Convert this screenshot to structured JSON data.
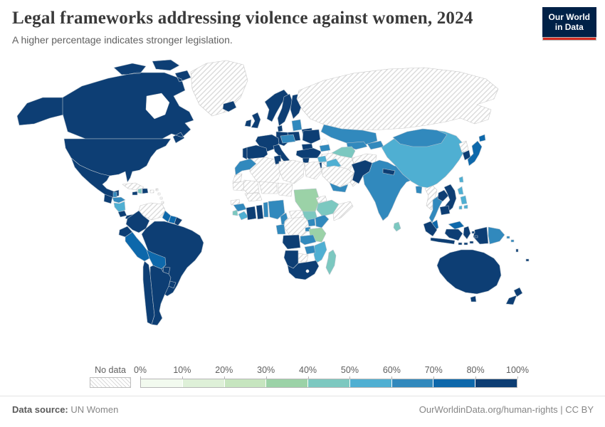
{
  "header": {
    "title": "Legal frameworks addressing violence against women, 2024",
    "subtitle": "A higher percentage indicates stronger legislation.",
    "logo": {
      "line1": "Our World",
      "line2": "in Data",
      "bg_color": "#002147",
      "accent_color": "#d42b21"
    }
  },
  "chart_data": {
    "type": "choropleth_map",
    "title": "Legal frameworks addressing violence against women, 2024",
    "unit": "%",
    "legend": {
      "no_data_label": "No data",
      "tick_labels": [
        "0%",
        "10%",
        "20%",
        "30%",
        "40%",
        "50%",
        "60%",
        "70%",
        "80%",
        "100%"
      ],
      "bins": [
        {
          "range": "0-10%",
          "color": "#f2faef"
        },
        {
          "range": "10-20%",
          "color": "#def0d8"
        },
        {
          "range": "20-30%",
          "color": "#c6e5bf"
        },
        {
          "range": "30-40%",
          "color": "#9bd2a7"
        },
        {
          "range": "40-50%",
          "color": "#7cc8c0"
        },
        {
          "range": "50-60%",
          "color": "#4fafd2"
        },
        {
          "range": "60-70%",
          "color": "#3189bd"
        },
        {
          "range": "70-80%",
          "color": "#0d68ab"
        },
        {
          "range": "80-100%",
          "color": "#0d3e74"
        }
      ],
      "no_data_pattern": "diagonal-hatch"
    },
    "regions": [
      {
        "id": "united-states",
        "name": "United States",
        "bin": "80-100%"
      },
      {
        "id": "canada",
        "name": "Canada",
        "bin": "80-100%"
      },
      {
        "id": "greenland",
        "name": "Greenland",
        "bin": "No data"
      },
      {
        "id": "mexico",
        "name": "Mexico",
        "bin": "80-100%"
      },
      {
        "id": "guatemala",
        "name": "Guatemala",
        "bin": "80-100%"
      },
      {
        "id": "belize",
        "name": "Belize",
        "bin": "60-70%"
      },
      {
        "id": "honduras",
        "name": "Honduras",
        "bin": "60-70%"
      },
      {
        "id": "nicaragua",
        "name": "Nicaragua",
        "bin": "50-60%"
      },
      {
        "id": "costa-rica",
        "name": "Costa Rica",
        "bin": "80-100%"
      },
      {
        "id": "panama",
        "name": "Panama",
        "bin": "80-100%"
      },
      {
        "id": "cuba",
        "name": "Cuba",
        "bin": "No data"
      },
      {
        "id": "jamaica",
        "name": "Jamaica",
        "bin": "80-100%"
      },
      {
        "id": "haiti",
        "name": "Haiti",
        "bin": "40-50%"
      },
      {
        "id": "dominican-republic",
        "name": "Dominican Republic",
        "bin": "80-100%"
      },
      {
        "id": "puerto-rico",
        "name": "Puerto Rico",
        "bin": "No data"
      },
      {
        "id": "caribbean-islands",
        "name": "Lesser Antilles",
        "bin": "No data"
      },
      {
        "id": "trinidad-and-tobago",
        "name": "Trinidad and Tobago",
        "bin": "70-80%"
      },
      {
        "id": "venezuela",
        "name": "Venezuela",
        "bin": "No data"
      },
      {
        "id": "colombia",
        "name": "Colombia",
        "bin": "80-100%"
      },
      {
        "id": "guyana",
        "name": "Guyana",
        "bin": "70-80%"
      },
      {
        "id": "suriname",
        "name": "Suriname",
        "bin": "70-80%"
      },
      {
        "id": "french-guiana",
        "name": "French Guiana (France)",
        "bin": "80-100%"
      },
      {
        "id": "ecuador",
        "name": "Ecuador",
        "bin": "80-100%"
      },
      {
        "id": "brazil",
        "name": "Brazil",
        "bin": "80-100%"
      },
      {
        "id": "peru",
        "name": "Peru",
        "bin": "70-80%"
      },
      {
        "id": "bolivia",
        "name": "Bolivia",
        "bin": "70-80%"
      },
      {
        "id": "paraguay",
        "name": "Paraguay",
        "bin": "80-100%"
      },
      {
        "id": "uruguay",
        "name": "Uruguay",
        "bin": "80-100%"
      },
      {
        "id": "chile",
        "name": "Chile",
        "bin": "80-100%"
      },
      {
        "id": "argentina",
        "name": "Argentina",
        "bin": "80-100%"
      },
      {
        "id": "iceland",
        "name": "Iceland",
        "bin": "80-100%"
      },
      {
        "id": "united-kingdom",
        "name": "United Kingdom",
        "bin": "80-100%"
      },
      {
        "id": "ireland",
        "name": "Ireland",
        "bin": "80-100%"
      },
      {
        "id": "norway",
        "name": "Norway",
        "bin": "80-100%"
      },
      {
        "id": "sweden",
        "name": "Sweden",
        "bin": "80-100%"
      },
      {
        "id": "finland",
        "name": "Finland",
        "bin": "80-100%"
      },
      {
        "id": "denmark",
        "name": "Denmark",
        "bin": "80-100%"
      },
      {
        "id": "baltics",
        "name": "Latvia & Lithuania",
        "bin": "60-70%"
      },
      {
        "id": "belarus",
        "name": "Belarus",
        "bin": "80-100%"
      },
      {
        "id": "poland",
        "name": "Poland",
        "bin": "80-100%"
      },
      {
        "id": "germany",
        "name": "Germany",
        "bin": "80-100%"
      },
      {
        "id": "france",
        "name": "France",
        "bin": "80-100%"
      },
      {
        "id": "spain",
        "name": "Spain",
        "bin": "80-100%"
      },
      {
        "id": "portugal",
        "name": "Portugal",
        "bin": "80-100%"
      },
      {
        "id": "italy",
        "name": "Italy",
        "bin": "80-100%"
      },
      {
        "id": "central-europe",
        "name": "Hungary, Slovakia & Croatia",
        "bin": "60-70%"
      },
      {
        "id": "ukraine",
        "name": "Ukraine",
        "bin": "80-100%"
      },
      {
        "id": "romania",
        "name": "Romania",
        "bin": "80-100%"
      },
      {
        "id": "bulgaria",
        "name": "Bulgaria",
        "bin": "80-100%"
      },
      {
        "id": "greece",
        "name": "Greece",
        "bin": "80-100%"
      },
      {
        "id": "turkey",
        "name": "Turkey",
        "bin": "80-100%"
      },
      {
        "id": "russia",
        "name": "Russia",
        "bin": "No data"
      },
      {
        "id": "kazakhstan",
        "name": "Kazakhstan",
        "bin": "60-70%"
      },
      {
        "id": "azerbaijan",
        "name": "Azerbaijan",
        "bin": "60-70%"
      },
      {
        "id": "turkmenistan",
        "name": "Turkmenistan",
        "bin": "40-50%"
      },
      {
        "id": "uzbekistan",
        "name": "Uzbekistan",
        "bin": "60-70%"
      },
      {
        "id": "kyrgyzstan",
        "name": "Kyrgyzstan & Tajikistan",
        "bin": "60-70%"
      },
      {
        "id": "afghanistan",
        "name": "Afghanistan",
        "bin": "No data"
      },
      {
        "id": "iran",
        "name": "Iran",
        "bin": "No data"
      },
      {
        "id": "syria",
        "name": "Syria",
        "bin": "50-60%"
      },
      {
        "id": "iraq",
        "name": "Iraq",
        "bin": "50-60%"
      },
      {
        "id": "israel",
        "name": "Israel",
        "bin": "80-100%"
      },
      {
        "id": "saudi-arabia",
        "name": "Saudi Arabia",
        "bin": "No data"
      },
      {
        "id": "yemen",
        "name": "Yemen",
        "bin": "60-70%"
      },
      {
        "id": "oman",
        "name": "Oman",
        "bin": "No data"
      },
      {
        "id": "pakistan",
        "name": "Pakistan",
        "bin": "80-100%"
      },
      {
        "id": "india",
        "name": "India",
        "bin": "60-70%"
      },
      {
        "id": "nepal",
        "name": "Nepal",
        "bin": "80-100%"
      },
      {
        "id": "bangladesh",
        "name": "Bangladesh",
        "bin": "60-70%"
      },
      {
        "id": "sri-lanka",
        "name": "Sri Lanka",
        "bin": "40-50%"
      },
      {
        "id": "china",
        "name": "China",
        "bin": "50-60%"
      },
      {
        "id": "mongolia",
        "name": "Mongolia",
        "bin": "60-70%"
      },
      {
        "id": "north-korea",
        "name": "North Korea",
        "bin": "No data"
      },
      {
        "id": "south-korea",
        "name": "South Korea",
        "bin": "80-100%"
      },
      {
        "id": "japan",
        "name": "Japan",
        "bin": "70-80%"
      },
      {
        "id": "taiwan",
        "name": "Taiwan",
        "bin": "50-60%"
      },
      {
        "id": "myanmar",
        "name": "Myanmar",
        "bin": "No data"
      },
      {
        "id": "thailand",
        "name": "Thailand",
        "bin": "60-70%"
      },
      {
        "id": "laos",
        "name": "Laos",
        "bin": "80-100%"
      },
      {
        "id": "vietnam",
        "name": "Vietnam",
        "bin": "80-100%"
      },
      {
        "id": "cambodia",
        "name": "Cambodia",
        "bin": "80-100%"
      },
      {
        "id": "malaysia",
        "name": "Malaysia",
        "bin": "70-80%"
      },
      {
        "id": "philippines",
        "name": "Philippines",
        "bin": "50-60%"
      },
      {
        "id": "indonesia",
        "name": "Indonesia",
        "bin": "80-100%"
      },
      {
        "id": "papua-new-guinea",
        "name": "Papua New Guinea",
        "bin": "60-70%"
      },
      {
        "id": "solomon-islands",
        "name": "Solomon Islands",
        "bin": "60-70%"
      },
      {
        "id": "vanuatu",
        "name": "Vanuatu",
        "bin": "80-100%"
      },
      {
        "id": "fiji",
        "name": "Fiji",
        "bin": "80-100%"
      },
      {
        "id": "australia",
        "name": "Australia",
        "bin": "80-100%"
      },
      {
        "id": "new-zealand",
        "name": "New Zealand",
        "bin": "80-100%"
      },
      {
        "id": "morocco",
        "name": "Morocco",
        "bin": "60-70%"
      },
      {
        "id": "western-sahara",
        "name": "Western Sahara",
        "bin": "No data"
      },
      {
        "id": "algeria",
        "name": "Algeria",
        "bin": "No data"
      },
      {
        "id": "tunisia",
        "name": "Tunisia",
        "bin": "80-100%"
      },
      {
        "id": "libya",
        "name": "Libya",
        "bin": "No data"
      },
      {
        "id": "egypt",
        "name": "Egypt",
        "bin": "No data"
      },
      {
        "id": "mauritania",
        "name": "Mauritania",
        "bin": "No data"
      },
      {
        "id": "mali",
        "name": "Mali",
        "bin": "No data"
      },
      {
        "id": "niger",
        "name": "Niger",
        "bin": "No data"
      },
      {
        "id": "chad",
        "name": "Chad",
        "bin": "No data"
      },
      {
        "id": "burkina-faso",
        "name": "Burkina Faso",
        "bin": "No data"
      },
      {
        "id": "senegal",
        "name": "Senegal",
        "bin": "No data"
      },
      {
        "id": "guinea",
        "name": "Guinea",
        "bin": "60-70%"
      },
      {
        "id": "sierra-leone",
        "name": "Sierra Leone",
        "bin": "40-50%"
      },
      {
        "id": "liberia",
        "name": "Liberia",
        "bin": "50-60%"
      },
      {
        "id": "cote-divoire",
        "name": "Cote d'Ivoire",
        "bin": "80-100%"
      },
      {
        "id": "ghana",
        "name": "Ghana",
        "bin": "80-100%"
      },
      {
        "id": "benin",
        "name": "Benin & Togo",
        "bin": "60-70%"
      },
      {
        "id": "nigeria",
        "name": "Nigeria",
        "bin": "60-70%"
      },
      {
        "id": "cameroon",
        "name": "Cameroon",
        "bin": "60-70%"
      },
      {
        "id": "central-african-republic",
        "name": "Central African Republic",
        "bin": "No data"
      },
      {
        "id": "sudan",
        "name": "Sudan",
        "bin": "30-40%"
      },
      {
        "id": "eritrea",
        "name": "Eritrea",
        "bin": "No data"
      },
      {
        "id": "ethiopia",
        "name": "Ethiopia",
        "bin": "40-50%"
      },
      {
        "id": "somalia",
        "name": "Somalia",
        "bin": "No data"
      },
      {
        "id": "south-sudan",
        "name": "South Sudan",
        "bin": "40-50%"
      },
      {
        "id": "dr-congo",
        "name": "Democratic Republic of Congo",
        "bin": "No data"
      },
      {
        "id": "uganda",
        "name": "Uganda",
        "bin": "60-70%"
      },
      {
        "id": "kenya",
        "name": "Kenya",
        "bin": "60-70%"
      },
      {
        "id": "rwanda",
        "name": "Rwanda & Burundi",
        "bin": "60-70%"
      },
      {
        "id": "tanzania",
        "name": "Tanzania",
        "bin": "30-40%"
      },
      {
        "id": "congo",
        "name": "Congo & Gabon",
        "bin": "60-70%"
      },
      {
        "id": "angola",
        "name": "Angola",
        "bin": "80-100%"
      },
      {
        "id": "zambia",
        "name": "Zambia",
        "bin": "60-70%"
      },
      {
        "id": "mozambique",
        "name": "Mozambique",
        "bin": "50-60%"
      },
      {
        "id": "zimbabwe",
        "name": "Zimbabwe",
        "bin": "60-70%"
      },
      {
        "id": "botswana",
        "name": "Botswana",
        "bin": "No data"
      },
      {
        "id": "namibia",
        "name": "Namibia",
        "bin": "80-100%"
      },
      {
        "id": "south-africa",
        "name": "South Africa",
        "bin": "80-100%"
      },
      {
        "id": "madagascar",
        "name": "Madagascar",
        "bin": "40-50%"
      }
    ]
  },
  "footer": {
    "datasource_label": "Data source:",
    "datasource_value": "UN Women",
    "link_text": "OurWorldinData.org/human-rights",
    "separator": "|",
    "license": "CC BY"
  }
}
